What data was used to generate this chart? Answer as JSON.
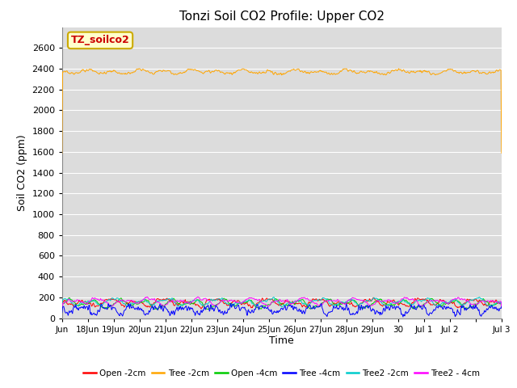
{
  "title": "Tonzi Soil CO2 Profile: Upper CO2",
  "ylabel": "Soil CO2 (ppm)",
  "xlabel": "Time",
  "annotation_label": "TZ_soilco2",
  "annotation_color_bg": "#FFFFCC",
  "annotation_color_border": "#CCAA00",
  "annotation_text_color": "#CC0000",
  "ylim": [
    0,
    2800
  ],
  "yticks": [
    0,
    200,
    400,
    600,
    800,
    1000,
    1200,
    1400,
    1600,
    1800,
    2000,
    2200,
    2400,
    2600
  ],
  "bg_color": "#DCDCDC",
  "grid_color": "#FFFFFF",
  "series": {
    "Open_2cm": {
      "color": "#FF0000"
    },
    "Tree_2cm": {
      "color": "#FFA500"
    },
    "Open_4cm": {
      "color": "#00CC00"
    },
    "Tree_4cm": {
      "color": "#0000FF"
    },
    "Tree2_2cm": {
      "color": "#00CCCC"
    },
    "Tree2_4cm": {
      "color": "#FF00FF"
    }
  },
  "legend": [
    {
      "label": "Open -2cm",
      "color": "#FF0000"
    },
    {
      "label": "Tree -2cm",
      "color": "#FFA500"
    },
    {
      "label": "Open -4cm",
      "color": "#00CC00"
    },
    {
      "label": "Tree -4cm",
      "color": "#0000FF"
    },
    {
      "label": "Tree2 -2cm",
      "color": "#00CCCC"
    },
    {
      "label": "Tree2 - 4cm",
      "color": "#FF00FF"
    }
  ],
  "n_points": 800,
  "x_start": 17,
  "x_end": 34,
  "xtick_positions": [
    17,
    18,
    19,
    20,
    21,
    22,
    23,
    24,
    25,
    26,
    27,
    28,
    29,
    30,
    31,
    32,
    33,
    34
  ],
  "xtick_labels": [
    "Jun",
    "18Jun",
    "19Jun",
    "20Jun",
    "21Jun",
    "22Jun",
    "23Jun",
    "24Jun",
    "25Jun",
    "26Jun",
    "27Jun",
    "28Jun",
    "29Jun",
    "30",
    "Jul 1",
    "Jul 2",
    "",
    "Jul 3"
  ]
}
